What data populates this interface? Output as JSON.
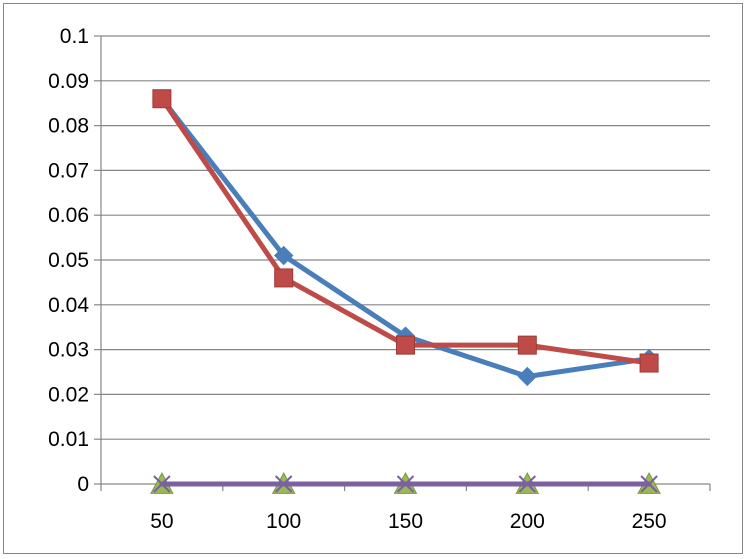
{
  "chart_data": {
    "type": "line",
    "title": "",
    "xlabel": "",
    "ylabel": "",
    "categories": [
      "50",
      "100",
      "150",
      "200",
      "250"
    ],
    "ylim": [
      0,
      0.1
    ],
    "yticks": [
      "0",
      "0.01",
      "0.02",
      "0.03",
      "0.04",
      "0.05",
      "0.06",
      "0.07",
      "0.08",
      "0.09",
      "0.1"
    ],
    "grid": true,
    "legend": "none",
    "series": [
      {
        "values": [
          0.086,
          0.051,
          0.033,
          0.024,
          0.028
        ],
        "color": "#4A7EBB",
        "marker": "diamond"
      },
      {
        "values": [
          0.086,
          0.046,
          0.031,
          0.031,
          0.027
        ],
        "color": "#BE4B48",
        "marker": "square"
      },
      {
        "values": [
          0,
          0,
          0,
          0,
          0
        ],
        "color": "#98B954",
        "marker": "triangle"
      },
      {
        "values": [
          0,
          0,
          0,
          0,
          0
        ],
        "color": "#7D60A0",
        "marker": "x"
      }
    ]
  }
}
